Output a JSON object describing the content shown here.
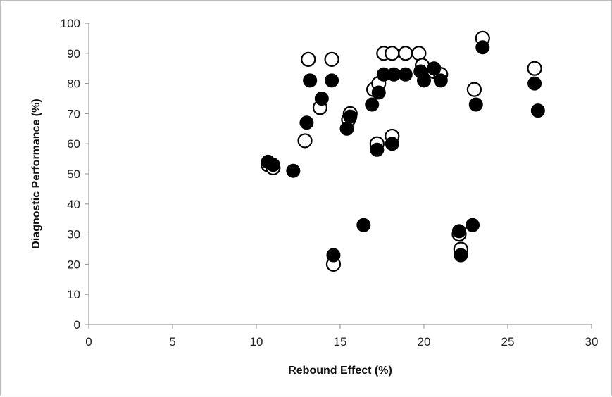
{
  "chart_data": {
    "type": "scatter",
    "title": "",
    "xlabel": "Rebound Effect (%)",
    "ylabel": "Diagnostic Performance (%)",
    "xlim": [
      0,
      30
    ],
    "ylim": [
      0,
      100
    ],
    "xticks": [
      0,
      5,
      10,
      15,
      20,
      25,
      30
    ],
    "yticks": [
      0,
      10,
      20,
      30,
      40,
      50,
      60,
      70,
      80,
      90,
      100
    ],
    "grid": false,
    "legend": "none",
    "series": [
      {
        "marker": "open-circle",
        "color": "#000000",
        "points": [
          [
            10.7,
            53
          ],
          [
            11.0,
            52
          ],
          [
            12.9,
            61
          ],
          [
            13.1,
            88
          ],
          [
            13.8,
            72
          ],
          [
            14.5,
            88
          ],
          [
            14.6,
            20
          ],
          [
            15.5,
            68
          ],
          [
            15.6,
            70
          ],
          [
            17.0,
            78
          ],
          [
            17.2,
            60
          ],
          [
            17.3,
            80
          ],
          [
            17.6,
            90
          ],
          [
            18.1,
            90
          ],
          [
            18.1,
            62.5
          ],
          [
            18.9,
            90
          ],
          [
            19.7,
            90
          ],
          [
            19.9,
            86
          ],
          [
            20.6,
            84
          ],
          [
            21.0,
            83
          ],
          [
            22.1,
            30
          ],
          [
            22.2,
            25
          ],
          [
            23.0,
            78
          ],
          [
            23.5,
            95
          ],
          [
            26.6,
            85
          ]
        ]
      },
      {
        "marker": "filled-circle",
        "color": "#000000",
        "points": [
          [
            10.7,
            54
          ],
          [
            11.0,
            53
          ],
          [
            12.2,
            51
          ],
          [
            13.0,
            67
          ],
          [
            13.2,
            81
          ],
          [
            13.9,
            75
          ],
          [
            14.5,
            81
          ],
          [
            14.6,
            23
          ],
          [
            15.4,
            65
          ],
          [
            15.6,
            69
          ],
          [
            16.4,
            33
          ],
          [
            16.9,
            73
          ],
          [
            17.2,
            58
          ],
          [
            17.3,
            77
          ],
          [
            17.6,
            83
          ],
          [
            18.1,
            60
          ],
          [
            18.2,
            83
          ],
          [
            18.9,
            83
          ],
          [
            19.8,
            84
          ],
          [
            20.0,
            81
          ],
          [
            20.6,
            85
          ],
          [
            21.0,
            81
          ],
          [
            22.1,
            31
          ],
          [
            22.2,
            23
          ],
          [
            22.9,
            33
          ],
          [
            23.1,
            73
          ],
          [
            23.5,
            92
          ],
          [
            26.6,
            80
          ],
          [
            26.8,
            71
          ]
        ]
      }
    ]
  }
}
